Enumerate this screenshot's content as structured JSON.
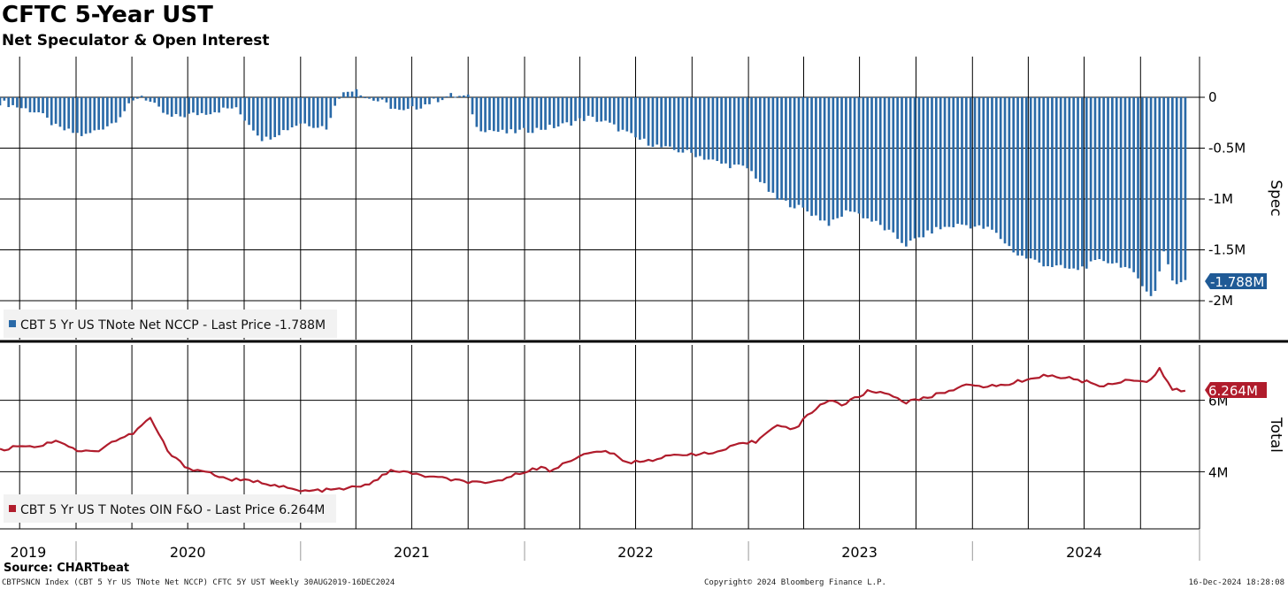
{
  "title": "CFTC 5-Year UST",
  "subtitle": "Net Speculator & Open Interest",
  "source": "Source: CHARTbeat",
  "footer": {
    "left": "CBTPSNCN Index (CBT 5 Yr US TNote Net NCCP) CFTC 5Y UST  Weekly 30AUG2019-16DEC2024",
    "middle": "Copyright© 2024 Bloomberg Finance L.P.",
    "right": "16-Dec-2024 18:28:08"
  },
  "colors": {
    "spec_bar": "#2a6aa8",
    "total_line": "#b01c2c",
    "grid": "#000000"
  },
  "chart_data": [
    {
      "type": "bar",
      "name": "spec-panel",
      "axis_title": "Spec",
      "legend": "CBT 5 Yr US TNote Net NCCP - Last Price -1.788M",
      "last_value_tag": "-1.788M",
      "y_unit": "millions",
      "y_range": [
        -2.4,
        0.4
      ],
      "y_ticks": [
        0,
        -0.5,
        -1,
        -1.5,
        -2
      ],
      "y_tick_labels": [
        "0",
        "-0.5M",
        "-1M",
        "-1.5M",
        "-2M"
      ],
      "x_start": "2019-08-30",
      "x_end": "2024-12-16",
      "frequency": "weekly",
      "points": [
        [
          "2019-09-01",
          -0.05
        ],
        [
          "2019-11-01",
          -0.15
        ],
        [
          "2019-12-01",
          -0.3
        ],
        [
          "2020-01-15",
          -0.38
        ],
        [
          "2020-03-01",
          -0.25
        ],
        [
          "2020-04-15",
          0.03
        ],
        [
          "2020-06-01",
          -0.2
        ],
        [
          "2020-08-01",
          -0.15
        ],
        [
          "2020-09-15",
          -0.1
        ],
        [
          "2020-10-15",
          -0.3
        ],
        [
          "2020-11-01",
          -0.42
        ],
        [
          "2021-01-01",
          -0.25
        ],
        [
          "2021-02-15",
          -0.3
        ],
        [
          "2021-03-01",
          0.0
        ],
        [
          "2021-04-01",
          0.1
        ],
        [
          "2021-04-15",
          0.0
        ],
        [
          "2021-05-15",
          -0.05
        ],
        [
          "2021-06-15",
          -0.15
        ],
        [
          "2021-08-01",
          -0.05
        ],
        [
          "2021-09-01",
          0.02
        ],
        [
          "2021-10-01",
          0.0
        ],
        [
          "2021-10-15",
          -0.3
        ],
        [
          "2021-12-01",
          -0.35
        ],
        [
          "2022-01-15",
          -0.32
        ],
        [
          "2022-03-01",
          -0.28
        ],
        [
          "2022-04-15",
          -0.2
        ],
        [
          "2022-05-15",
          -0.25
        ],
        [
          "2022-07-01",
          -0.4
        ],
        [
          "2022-08-15",
          -0.5
        ],
        [
          "2022-10-01",
          -0.55
        ],
        [
          "2022-11-15",
          -0.65
        ],
        [
          "2023-01-01",
          -0.7
        ],
        [
          "2023-02-15",
          -1.0
        ],
        [
          "2023-04-01",
          -1.1
        ],
        [
          "2023-05-15",
          -1.25
        ],
        [
          "2023-06-15",
          -1.1
        ],
        [
          "2023-08-01",
          -1.25
        ],
        [
          "2023-09-15",
          -1.45
        ],
        [
          "2023-11-01",
          -1.3
        ],
        [
          "2023-12-15",
          -1.25
        ],
        [
          "2024-02-01",
          -1.3
        ],
        [
          "2024-03-15",
          -1.55
        ],
        [
          "2024-05-01",
          -1.65
        ],
        [
          "2024-06-15",
          -1.7
        ],
        [
          "2024-08-01",
          -1.6
        ],
        [
          "2024-09-01",
          -1.65
        ],
        [
          "2024-10-01",
          -1.8
        ],
        [
          "2024-10-22",
          -2.0
        ],
        [
          "2024-11-08",
          -1.5
        ],
        [
          "2024-11-25",
          -1.85
        ],
        [
          "2024-12-16",
          -1.788
        ]
      ]
    },
    {
      "type": "line",
      "name": "total-panel",
      "axis_title": "Total",
      "legend": "CBT 5 Yr US T Notes OIN F&O - Last Price 6.264M",
      "last_value_tag": "6.264M",
      "y_unit": "millions",
      "y_range": [
        2.4,
        7.6
      ],
      "y_ticks": [
        6,
        4
      ],
      "y_tick_labels": [
        "6M",
        "4M"
      ],
      "x_start": "2019-08-30",
      "x_end": "2024-12-16",
      "frequency": "weekly",
      "points": [
        [
          "2019-09-01",
          4.6
        ],
        [
          "2019-10-01",
          4.75
        ],
        [
          "2019-11-01",
          4.7
        ],
        [
          "2019-12-01",
          4.9
        ],
        [
          "2020-01-01",
          4.6
        ],
        [
          "2020-02-01",
          4.55
        ],
        [
          "2020-03-01",
          4.85
        ],
        [
          "2020-04-01",
          5.05
        ],
        [
          "2020-05-01",
          5.5
        ],
        [
          "2020-06-01",
          4.5
        ],
        [
          "2020-07-01",
          4.1
        ],
        [
          "2020-08-01",
          4.0
        ],
        [
          "2020-09-01",
          3.8
        ],
        [
          "2020-11-01",
          3.7
        ],
        [
          "2021-01-01",
          3.45
        ],
        [
          "2021-03-01",
          3.5
        ],
        [
          "2021-04-15",
          3.6
        ],
        [
          "2021-06-01",
          4.05
        ],
        [
          "2021-07-15",
          3.9
        ],
        [
          "2021-09-15",
          3.75
        ],
        [
          "2021-11-01",
          3.65
        ],
        [
          "2021-12-15",
          3.9
        ],
        [
          "2022-01-15",
          4.1
        ],
        [
          "2022-02-01",
          4.1
        ],
        [
          "2022-02-15",
          4.0
        ],
        [
          "2022-03-01",
          4.2
        ],
        [
          "2022-04-01",
          4.45
        ],
        [
          "2022-05-15",
          4.6
        ],
        [
          "2022-06-15",
          4.25
        ],
        [
          "2022-08-01",
          4.35
        ],
        [
          "2022-09-15",
          4.5
        ],
        [
          "2022-11-01",
          4.5
        ],
        [
          "2022-12-15",
          4.75
        ],
        [
          "2023-01-15",
          4.85
        ],
        [
          "2023-02-15",
          5.35
        ],
        [
          "2023-03-15",
          5.15
        ],
        [
          "2023-04-15",
          5.7
        ],
        [
          "2023-05-15",
          6.05
        ],
        [
          "2023-06-01",
          5.85
        ],
        [
          "2023-07-15",
          6.25
        ],
        [
          "2023-08-15",
          6.2
        ],
        [
          "2023-09-15",
          5.95
        ],
        [
          "2023-10-15",
          6.05
        ],
        [
          "2023-12-15",
          6.4
        ],
        [
          "2024-02-15",
          6.4
        ],
        [
          "2024-04-01",
          6.6
        ],
        [
          "2024-05-01",
          6.7
        ],
        [
          "2024-06-15",
          6.6
        ],
        [
          "2024-08-01",
          6.4
        ],
        [
          "2024-09-15",
          6.6
        ],
        [
          "2024-10-15",
          6.5
        ],
        [
          "2024-11-01",
          6.9
        ],
        [
          "2024-11-20",
          6.3
        ],
        [
          "2024-12-16",
          6.264
        ]
      ]
    }
  ],
  "x_axis": {
    "years": [
      "2019",
      "2020",
      "2021",
      "2022",
      "2023",
      "2024"
    ],
    "year_dates": [
      "2019-10-15",
      "2020-07-01",
      "2021-07-01",
      "2022-07-01",
      "2023-07-01",
      "2024-07-01"
    ]
  }
}
